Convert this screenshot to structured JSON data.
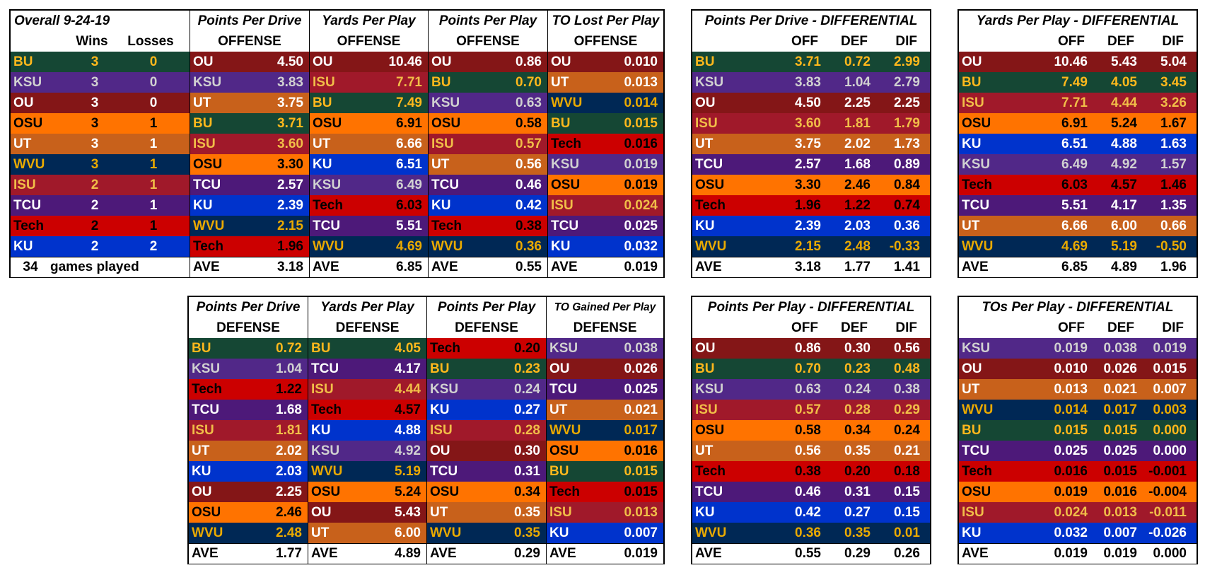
{
  "teams": {
    "BU": {
      "bg": "#154734",
      "fg": "#FFB81C"
    },
    "KSU": {
      "bg": "#512888",
      "fg": "#D1D1D1"
    },
    "OU": {
      "bg": "#841617",
      "fg": "#FFFFFF"
    },
    "OSU": {
      "bg": "#FF7300",
      "fg": "#000000"
    },
    "UT": {
      "bg": "#C8611B",
      "fg": "#FFFFFF"
    },
    "WVU": {
      "bg": "#002855",
      "fg": "#EAAA00"
    },
    "ISU": {
      "bg": "#A0192A",
      "fg": "#F1BE48"
    },
    "TCU": {
      "bg": "#4D1979",
      "fg": "#FFFFFF"
    },
    "Tech": {
      "bg": "#CC0000",
      "fg": "#000000"
    },
    "KU": {
      "bg": "#0033CC",
      "fg": "#FFFFFF"
    }
  },
  "overall": {
    "title": "Overall 9-24-19",
    "wins_label": "Wins",
    "losses_label": "Losses",
    "rows": [
      {
        "team": "BU",
        "wins": "3",
        "losses": "0"
      },
      {
        "team": "KSU",
        "wins": "3",
        "losses": "0"
      },
      {
        "team": "OU",
        "wins": "3",
        "losses": "0"
      },
      {
        "team": "OSU",
        "wins": "3",
        "losses": "1"
      },
      {
        "team": "UT",
        "wins": "3",
        "losses": "1"
      },
      {
        "team": "WVU",
        "wins": "3",
        "losses": "1"
      },
      {
        "team": "ISU",
        "wins": "2",
        "losses": "1"
      },
      {
        "team": "TCU",
        "wins": "2",
        "losses": "1"
      },
      {
        "team": "Tech",
        "wins": "2",
        "losses": "1"
      },
      {
        "team": "KU",
        "wins": "2",
        "losses": "2"
      }
    ],
    "footer_count": "34",
    "footer_label": "games played"
  },
  "offense": [
    {
      "title": "Points Per Drive",
      "sub": "OFFENSE",
      "avg": "3.18",
      "rows": [
        [
          "OU",
          "4.50"
        ],
        [
          "KSU",
          "3.83"
        ],
        [
          "UT",
          "3.75"
        ],
        [
          "BU",
          "3.71"
        ],
        [
          "ISU",
          "3.60"
        ],
        [
          "OSU",
          "3.30"
        ],
        [
          "TCU",
          "2.57"
        ],
        [
          "KU",
          "2.39"
        ],
        [
          "WVU",
          "2.15"
        ],
        [
          "Tech",
          "1.96"
        ]
      ]
    },
    {
      "title": "Yards Per Play",
      "sub": "OFFENSE",
      "avg": "6.85",
      "rows": [
        [
          "OU",
          "10.46"
        ],
        [
          "ISU",
          "7.71"
        ],
        [
          "BU",
          "7.49"
        ],
        [
          "OSU",
          "6.91"
        ],
        [
          "UT",
          "6.66"
        ],
        [
          "KU",
          "6.51"
        ],
        [
          "KSU",
          "6.49"
        ],
        [
          "Tech",
          "6.03"
        ],
        [
          "TCU",
          "5.51"
        ],
        [
          "WVU",
          "4.69"
        ]
      ]
    },
    {
      "title": "Points Per Play",
      "sub": "OFFENSE",
      "avg": "0.55",
      "rows": [
        [
          "OU",
          "0.86"
        ],
        [
          "BU",
          "0.70"
        ],
        [
          "KSU",
          "0.63"
        ],
        [
          "OSU",
          "0.58"
        ],
        [
          "ISU",
          "0.57"
        ],
        [
          "UT",
          "0.56"
        ],
        [
          "TCU",
          "0.46"
        ],
        [
          "KU",
          "0.42"
        ],
        [
          "Tech",
          "0.38"
        ],
        [
          "WVU",
          "0.36"
        ]
      ]
    },
    {
      "title": "TO Lost Per Play",
      "sub": "OFFENSE",
      "avg": "0.019",
      "rows": [
        [
          "OU",
          "0.010"
        ],
        [
          "UT",
          "0.013"
        ],
        [
          "WVU",
          "0.014"
        ],
        [
          "BU",
          "0.015"
        ],
        [
          "Tech",
          "0.016"
        ],
        [
          "KSU",
          "0.019"
        ],
        [
          "OSU",
          "0.019"
        ],
        [
          "ISU",
          "0.024"
        ],
        [
          "TCU",
          "0.025"
        ],
        [
          "KU",
          "0.032"
        ]
      ]
    }
  ],
  "defense": [
    {
      "title": "Points Per Drive",
      "sub": "DEFENSE",
      "avg": "1.77",
      "rows": [
        [
          "BU",
          "0.72"
        ],
        [
          "KSU",
          "1.04"
        ],
        [
          "Tech",
          "1.22"
        ],
        [
          "TCU",
          "1.68"
        ],
        [
          "ISU",
          "1.81"
        ],
        [
          "UT",
          "2.02"
        ],
        [
          "KU",
          "2.03"
        ],
        [
          "OU",
          "2.25"
        ],
        [
          "OSU",
          "2.46"
        ],
        [
          "WVU",
          "2.48"
        ]
      ]
    },
    {
      "title": "Yards Per Play",
      "sub": "DEFENSE",
      "avg": "4.89",
      "rows": [
        [
          "BU",
          "4.05"
        ],
        [
          "TCU",
          "4.17"
        ],
        [
          "ISU",
          "4.44"
        ],
        [
          "Tech",
          "4.57"
        ],
        [
          "KU",
          "4.88"
        ],
        [
          "KSU",
          "4.92"
        ],
        [
          "WVU",
          "5.19"
        ],
        [
          "OSU",
          "5.24"
        ],
        [
          "OU",
          "5.43"
        ],
        [
          "UT",
          "6.00"
        ]
      ]
    },
    {
      "title": "Points Per Play",
      "sub": "DEFENSE",
      "avg": "0.29",
      "rows": [
        [
          "Tech",
          "0.20"
        ],
        [
          "BU",
          "0.23"
        ],
        [
          "KSU",
          "0.24"
        ],
        [
          "KU",
          "0.27"
        ],
        [
          "ISU",
          "0.28"
        ],
        [
          "OU",
          "0.30"
        ],
        [
          "TCU",
          "0.31"
        ],
        [
          "OSU",
          "0.34"
        ],
        [
          "UT",
          "0.35"
        ],
        [
          "WVU",
          "0.35"
        ]
      ]
    },
    {
      "title": "TO Gained Per Play",
      "sub": "DEFENSE",
      "avg": "0.019",
      "small": true,
      "rows": [
        [
          "KSU",
          "0.038"
        ],
        [
          "OU",
          "0.026"
        ],
        [
          "TCU",
          "0.025"
        ],
        [
          "UT",
          "0.021"
        ],
        [
          "WVU",
          "0.017"
        ],
        [
          "OSU",
          "0.016"
        ],
        [
          "BU",
          "0.015"
        ],
        [
          "Tech",
          "0.015"
        ],
        [
          "ISU",
          "0.013"
        ],
        [
          "KU",
          "0.007"
        ]
      ]
    }
  ],
  "differentials": [
    {
      "title": "Points Per Drive - DIFFERENTIAL",
      "cols": [
        "OFF",
        "DEF",
        "DIF"
      ],
      "avg": [
        "3.18",
        "1.77",
        "1.41"
      ],
      "rows": [
        [
          "BU",
          "3.71",
          "0.72",
          "2.99"
        ],
        [
          "KSU",
          "3.83",
          "1.04",
          "2.79"
        ],
        [
          "OU",
          "4.50",
          "2.25",
          "2.25"
        ],
        [
          "ISU",
          "3.60",
          "1.81",
          "1.79"
        ],
        [
          "UT",
          "3.75",
          "2.02",
          "1.73"
        ],
        [
          "TCU",
          "2.57",
          "1.68",
          "0.89"
        ],
        [
          "OSU",
          "3.30",
          "2.46",
          "0.84"
        ],
        [
          "Tech",
          "1.96",
          "1.22",
          "0.74"
        ],
        [
          "KU",
          "2.39",
          "2.03",
          "0.36"
        ],
        [
          "WVU",
          "2.15",
          "2.48",
          "-0.33"
        ]
      ]
    },
    {
      "title": "Yards Per Play - DIFFERENTIAL",
      "cols": [
        "OFF",
        "DEF",
        "DIF"
      ],
      "avg": [
        "6.85",
        "4.89",
        "1.96"
      ],
      "rows": [
        [
          "OU",
          "10.46",
          "5.43",
          "5.04"
        ],
        [
          "BU",
          "7.49",
          "4.05",
          "3.45"
        ],
        [
          "ISU",
          "7.71",
          "4.44",
          "3.26"
        ],
        [
          "OSU",
          "6.91",
          "5.24",
          "1.67"
        ],
        [
          "KU",
          "6.51",
          "4.88",
          "1.63"
        ],
        [
          "KSU",
          "6.49",
          "4.92",
          "1.57"
        ],
        [
          "Tech",
          "6.03",
          "4.57",
          "1.46"
        ],
        [
          "TCU",
          "5.51",
          "4.17",
          "1.35"
        ],
        [
          "UT",
          "6.66",
          "6.00",
          "0.66"
        ],
        [
          "WVU",
          "4.69",
          "5.19",
          "-0.50"
        ]
      ]
    },
    {
      "title": "Points Per Play - DIFFERENTIAL",
      "cols": [
        "OFF",
        "DEF",
        "DIF"
      ],
      "avg": [
        "0.55",
        "0.29",
        "0.26"
      ],
      "rows": [
        [
          "OU",
          "0.86",
          "0.30",
          "0.56"
        ],
        [
          "BU",
          "0.70",
          "0.23",
          "0.48"
        ],
        [
          "KSU",
          "0.63",
          "0.24",
          "0.38"
        ],
        [
          "ISU",
          "0.57",
          "0.28",
          "0.29"
        ],
        [
          "OSU",
          "0.58",
          "0.34",
          "0.24"
        ],
        [
          "UT",
          "0.56",
          "0.35",
          "0.21"
        ],
        [
          "Tech",
          "0.38",
          "0.20",
          "0.18"
        ],
        [
          "TCU",
          "0.46",
          "0.31",
          "0.15"
        ],
        [
          "KU",
          "0.42",
          "0.27",
          "0.15"
        ],
        [
          "WVU",
          "0.36",
          "0.35",
          "0.01"
        ]
      ]
    },
    {
      "title": "TOs Per Play - DIFFERENTIAL",
      "cols": [
        "OFF",
        "DEF",
        "DIF"
      ],
      "avg": [
        "0.019",
        "0.019",
        "0.000"
      ],
      "rows": [
        [
          "KSU",
          "0.019",
          "0.038",
          "0.019"
        ],
        [
          "OU",
          "0.010",
          "0.026",
          "0.015"
        ],
        [
          "UT",
          "0.013",
          "0.021",
          "0.007"
        ],
        [
          "WVU",
          "0.014",
          "0.017",
          "0.003"
        ],
        [
          "BU",
          "0.015",
          "0.015",
          "0.000"
        ],
        [
          "TCU",
          "0.025",
          "0.025",
          "0.000"
        ],
        [
          "Tech",
          "0.016",
          "0.015",
          "-0.001"
        ],
        [
          "OSU",
          "0.019",
          "0.016",
          "-0.004"
        ],
        [
          "ISU",
          "0.024",
          "0.013",
          "-0.011"
        ],
        [
          "KU",
          "0.032",
          "0.007",
          "-0.026"
        ]
      ]
    }
  ],
  "ave_label": "AVE"
}
